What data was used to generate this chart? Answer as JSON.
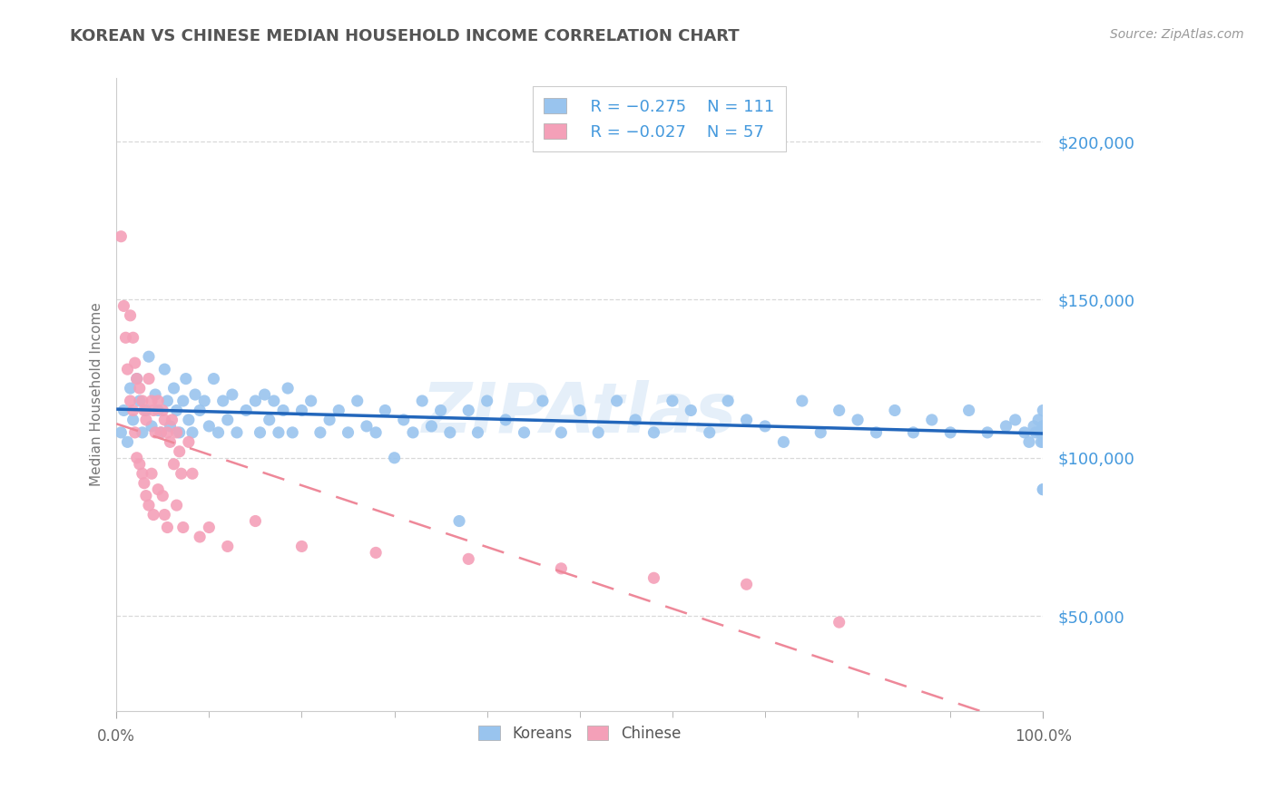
{
  "title": "KOREAN VS CHINESE MEDIAN HOUSEHOLD INCOME CORRELATION CHART",
  "source_text": "Source: ZipAtlas.com",
  "ylabel": "Median Household Income",
  "xlim": [
    0,
    1.0
  ],
  "ylim": [
    20000,
    220000
  ],
  "background_color": "#ffffff",
  "grid_color": "#d0d0d0",
  "title_color": "#555555",
  "title_fontsize": 13,
  "source_color": "#999999",
  "right_ytick_color": "#4499dd",
  "koreans_color": "#99c4ee",
  "chinese_color": "#f4a0b8",
  "koreans_line_color": "#2266bb",
  "chinese_line_color": "#ee8899",
  "legend_korean_R": "R = −0.275",
  "legend_korean_N": "N = 111",
  "legend_chinese_R": "R = −0.027",
  "legend_chinese_N": "N = 57",
  "watermark_text": "ZIPAtlas",
  "watermark_color": "#aaccee",
  "watermark_alpha": 0.3,
  "koreans_x": [
    0.005,
    0.008,
    0.012,
    0.015,
    0.018,
    0.022,
    0.025,
    0.028,
    0.032,
    0.035,
    0.038,
    0.042,
    0.045,
    0.048,
    0.052,
    0.055,
    0.058,
    0.062,
    0.065,
    0.068,
    0.072,
    0.075,
    0.078,
    0.082,
    0.085,
    0.09,
    0.095,
    0.1,
    0.105,
    0.11,
    0.115,
    0.12,
    0.125,
    0.13,
    0.14,
    0.15,
    0.155,
    0.16,
    0.165,
    0.17,
    0.175,
    0.18,
    0.185,
    0.19,
    0.2,
    0.21,
    0.22,
    0.23,
    0.24,
    0.25,
    0.26,
    0.27,
    0.28,
    0.29,
    0.3,
    0.31,
    0.32,
    0.33,
    0.34,
    0.35,
    0.36,
    0.37,
    0.38,
    0.39,
    0.4,
    0.42,
    0.44,
    0.46,
    0.48,
    0.5,
    0.52,
    0.54,
    0.56,
    0.58,
    0.6,
    0.62,
    0.64,
    0.66,
    0.68,
    0.7,
    0.72,
    0.74,
    0.76,
    0.78,
    0.8,
    0.82,
    0.84,
    0.86,
    0.88,
    0.9,
    0.92,
    0.94,
    0.96,
    0.97,
    0.98,
    0.985,
    0.99,
    0.992,
    0.995,
    0.997,
    0.998,
    0.999,
    1.0,
    1.0,
    1.0,
    1.0,
    1.0,
    1.0,
    1.0,
    1.0,
    1.0
  ],
  "koreans_y": [
    108000,
    115000,
    105000,
    122000,
    112000,
    125000,
    118000,
    108000,
    115000,
    132000,
    110000,
    120000,
    115000,
    108000,
    128000,
    118000,
    110000,
    122000,
    115000,
    108000,
    118000,
    125000,
    112000,
    108000,
    120000,
    115000,
    118000,
    110000,
    125000,
    108000,
    118000,
    112000,
    120000,
    108000,
    115000,
    118000,
    108000,
    120000,
    112000,
    118000,
    108000,
    115000,
    122000,
    108000,
    115000,
    118000,
    108000,
    112000,
    115000,
    108000,
    118000,
    110000,
    108000,
    115000,
    100000,
    112000,
    108000,
    118000,
    110000,
    115000,
    108000,
    80000,
    115000,
    108000,
    118000,
    112000,
    108000,
    118000,
    108000,
    115000,
    108000,
    118000,
    112000,
    108000,
    118000,
    115000,
    108000,
    118000,
    112000,
    110000,
    105000,
    118000,
    108000,
    115000,
    112000,
    108000,
    115000,
    108000,
    112000,
    108000,
    115000,
    108000,
    110000,
    112000,
    108000,
    105000,
    110000,
    108000,
    112000,
    108000,
    105000,
    108000,
    115000,
    110000,
    108000,
    105000,
    110000,
    108000,
    90000,
    108000,
    90000
  ],
  "chinese_x": [
    0.005,
    0.008,
    0.01,
    0.012,
    0.015,
    0.015,
    0.018,
    0.018,
    0.02,
    0.02,
    0.022,
    0.022,
    0.025,
    0.025,
    0.028,
    0.028,
    0.03,
    0.03,
    0.032,
    0.032,
    0.035,
    0.035,
    0.038,
    0.038,
    0.04,
    0.04,
    0.042,
    0.045,
    0.045,
    0.048,
    0.05,
    0.05,
    0.052,
    0.052,
    0.055,
    0.055,
    0.058,
    0.06,
    0.062,
    0.065,
    0.065,
    0.068,
    0.07,
    0.072,
    0.078,
    0.082,
    0.09,
    0.1,
    0.12,
    0.15,
    0.2,
    0.28,
    0.38,
    0.48,
    0.58,
    0.68,
    0.78
  ],
  "chinese_y": [
    170000,
    148000,
    138000,
    128000,
    145000,
    118000,
    138000,
    115000,
    130000,
    108000,
    125000,
    100000,
    122000,
    98000,
    118000,
    95000,
    115000,
    92000,
    112000,
    88000,
    125000,
    85000,
    118000,
    95000,
    115000,
    82000,
    108000,
    118000,
    90000,
    108000,
    115000,
    88000,
    112000,
    82000,
    108000,
    78000,
    105000,
    112000,
    98000,
    108000,
    85000,
    102000,
    95000,
    78000,
    105000,
    95000,
    75000,
    78000,
    72000,
    80000,
    72000,
    70000,
    68000,
    65000,
    62000,
    60000,
    48000
  ]
}
